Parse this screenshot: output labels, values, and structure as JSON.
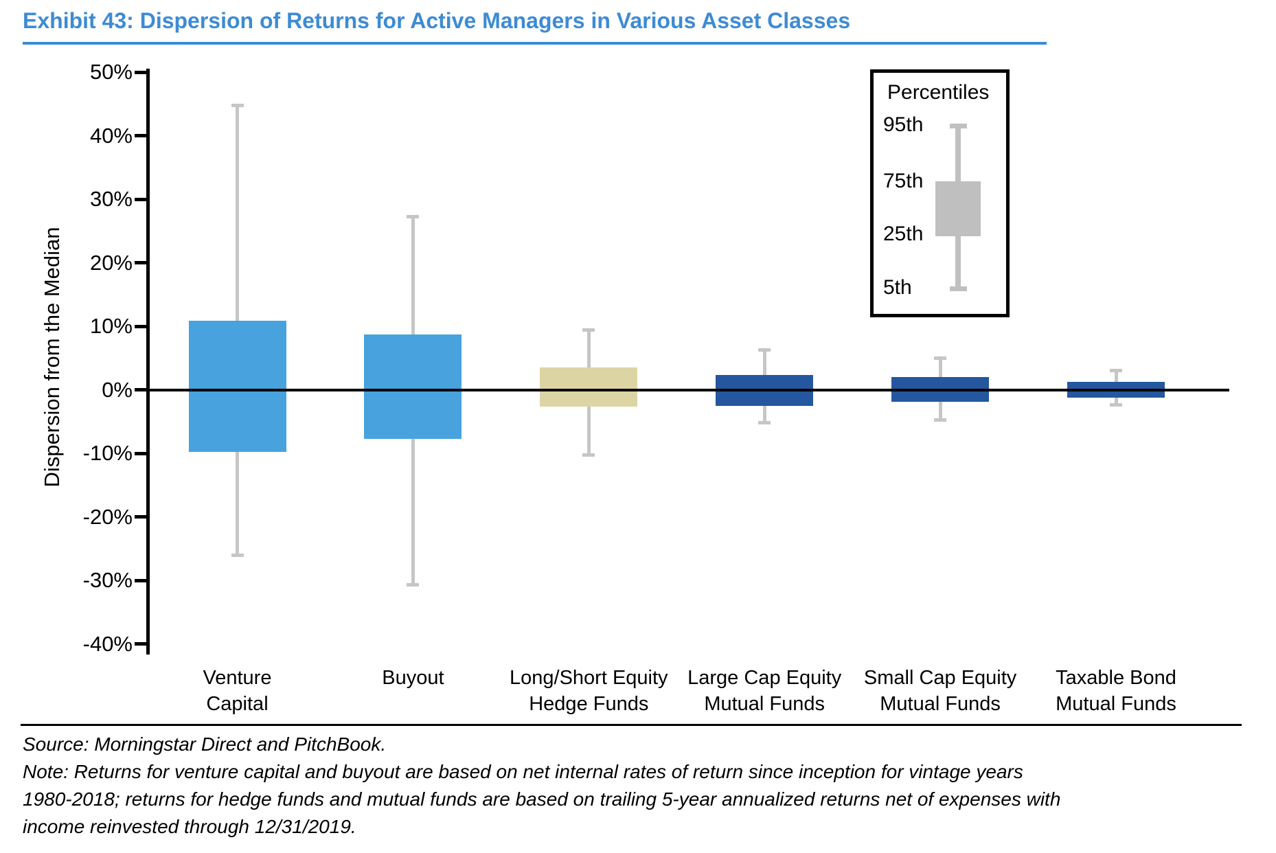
{
  "page": {
    "title": "Exhibit 43: Dispersion of Returns for Active Managers in Various Asset Classes",
    "accent_color": "#3D8BD4"
  },
  "chart_data": {
    "type": "box",
    "title": "Dispersion of Returns for Active Managers in Various Asset Classes",
    "ylabel": "Dispersion from the Median",
    "ylim": [
      -40,
      50
    ],
    "ytick_step": 10,
    "ytick_labels": [
      "50%",
      "40%",
      "30%",
      "20%",
      "10%",
      "0%",
      "-10%",
      "-20%",
      "-30%",
      "-40%"
    ],
    "grid": false,
    "unit": "percent dispersion from median",
    "series": [
      {
        "name": "Venture Capital",
        "label_lines": [
          "Venture",
          "Capital"
        ],
        "p95": 44.8,
        "p75": 10.9,
        "p25": -9.8,
        "p5": -26.0,
        "color": "#47A2DE"
      },
      {
        "name": "Buyout",
        "label_lines": [
          "Buyout"
        ],
        "p95": 27.2,
        "p75": 8.7,
        "p25": -7.7,
        "p5": -30.7,
        "color": "#47A2DE"
      },
      {
        "name": "Long/Short Equity Hedge Funds",
        "label_lines": [
          "Long/Short Equity",
          "Hedge Funds"
        ],
        "p95": 9.4,
        "p75": 3.5,
        "p25": -2.7,
        "p5": -10.3,
        "color": "#DCD5A3"
      },
      {
        "name": "Large Cap Equity Mutual Funds",
        "label_lines": [
          "Large Cap Equity",
          "Mutual Funds"
        ],
        "p95": 6.3,
        "p75": 2.3,
        "p25": -2.5,
        "p5": -5.2,
        "color": "#24579F"
      },
      {
        "name": "Small Cap Equity Mutual Funds",
        "label_lines": [
          "Small Cap Equity",
          "Mutual Funds"
        ],
        "p95": 5.0,
        "p75": 2.0,
        "p25": -1.9,
        "p5": -4.8,
        "color": "#24579F"
      },
      {
        "name": "Taxable Bond Mutual Funds",
        "label_lines": [
          "Taxable Bond",
          "Mutual Funds"
        ],
        "p95": 3.0,
        "p75": 1.2,
        "p25": -1.2,
        "p5": -2.4,
        "color": "#24579F"
      }
    ],
    "whisker_color": "#C6C6C6",
    "legend": {
      "title": "Percentiles",
      "entries": [
        "95th",
        "75th",
        "25th",
        "5th"
      ],
      "position": "top-right",
      "glyph_color": "#BFBFBF",
      "glyph_line_color": "#C0C0C0"
    }
  },
  "footer": {
    "source": "Source: Morningstar Direct and PitchBook.",
    "note_lines": [
      "Note: Returns for venture capital and buyout are based on net internal rates of return since inception for vintage years",
      "1980-2018; returns for hedge funds and mutual funds are based on trailing 5-year annualized returns net of expenses with",
      "income reinvested through 12/31/2019."
    ]
  }
}
